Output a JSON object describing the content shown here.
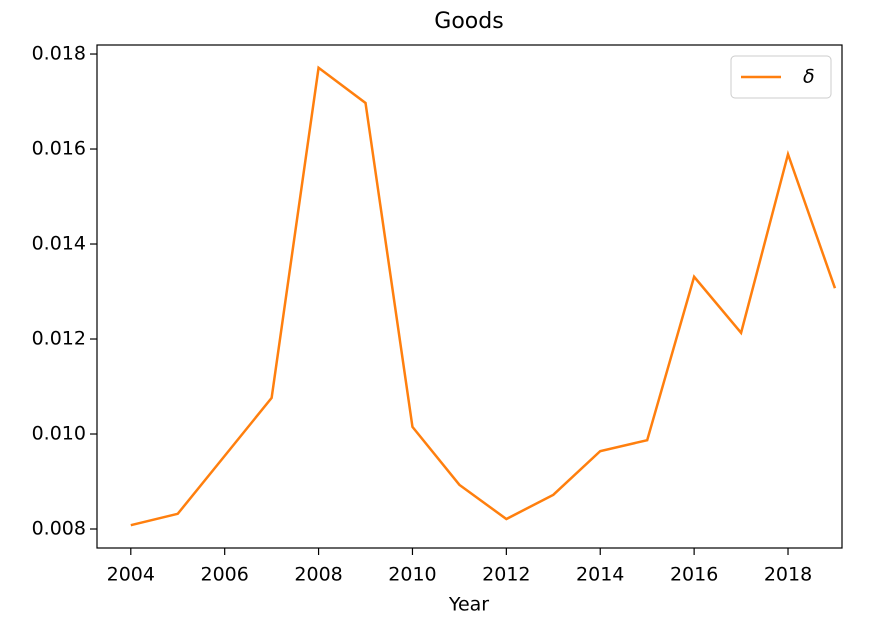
{
  "chart_data": {
    "type": "line",
    "title": "Goods",
    "xlabel": "Year",
    "x": [
      2004,
      2005,
      2006,
      2007,
      2008,
      2009,
      2010,
      2011,
      2012,
      2013,
      2014,
      2015,
      2016,
      2017,
      2018,
      2019
    ],
    "series": [
      {
        "name": "δ",
        "color": "#ff7f0e",
        "values": [
          0.00808,
          0.00832,
          0.00954,
          0.01076,
          0.01771,
          0.01697,
          0.01015,
          0.00893,
          0.00821,
          0.00872,
          0.00964,
          0.00987,
          0.01331,
          0.01213,
          0.01589,
          0.01307
        ]
      }
    ],
    "xlim": [
      2003.28,
      2019.15
    ],
    "xticks": [
      2004,
      2006,
      2008,
      2010,
      2012,
      2014,
      2016,
      2018
    ],
    "ylim": [
      0.0076,
      0.01819
    ],
    "yticks": [
      {
        "value": 0.008,
        "label": "0.008"
      },
      {
        "value": 0.01,
        "label": "0.010"
      },
      {
        "value": 0.012,
        "label": "0.012"
      },
      {
        "value": 0.014,
        "label": "0.014"
      },
      {
        "value": 0.016,
        "label": "0.016"
      },
      {
        "value": 0.018,
        "label": "0.018"
      }
    ],
    "grid": false,
    "legend": "upper right"
  }
}
